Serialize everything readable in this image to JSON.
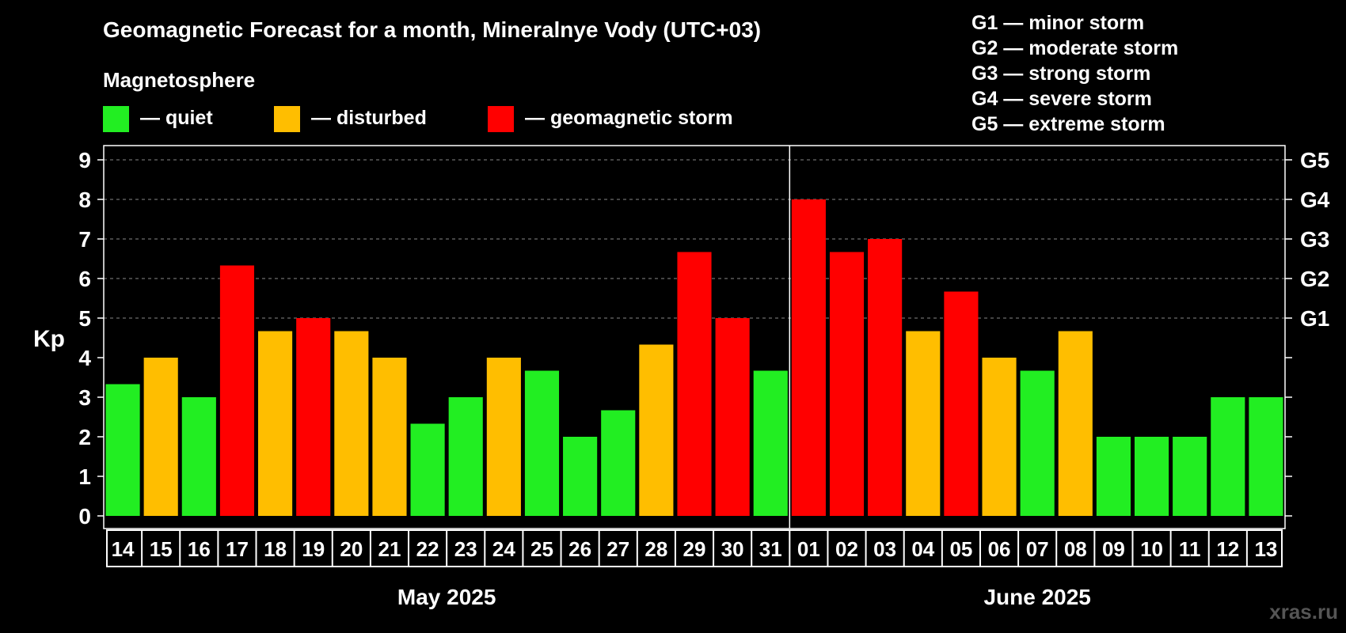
{
  "title": "Geomagnetic Forecast for a month, Mineralnye Vody (UTC+03)",
  "legend": {
    "heading": "Magnetosphere",
    "items": [
      {
        "label": "— quiet",
        "color": "#22ee22"
      },
      {
        "label": "— disturbed",
        "color": "#ffbe00"
      },
      {
        "label": "— geomagnetic storm",
        "color": "#ff0000"
      }
    ]
  },
  "storm_scale": [
    "G1 — minor storm",
    "G2 — moderate storm",
    "G3 — strong storm",
    "G4 — severe storm",
    "G5 — extreme storm"
  ],
  "watermark": "xras.ru",
  "chart_data": {
    "type": "bar",
    "ylabel": "Kp",
    "ylim": [
      0,
      9
    ],
    "yticks": [
      0,
      1,
      2,
      3,
      4,
      5,
      6,
      7,
      8,
      9
    ],
    "right_ticks": [
      {
        "value": 5,
        "label": "G1"
      },
      {
        "value": 6,
        "label": "G2"
      },
      {
        "value": 7,
        "label": "G3"
      },
      {
        "value": 8,
        "label": "G4"
      },
      {
        "value": 9,
        "label": "G5"
      }
    ],
    "grid": "dashed horizontal at 5-9",
    "months": [
      {
        "label": "May 2025",
        "first_index": 0,
        "last_index": 17
      },
      {
        "label": "June 2025",
        "first_index": 18,
        "last_index": 30
      }
    ],
    "categories": [
      "14",
      "15",
      "16",
      "17",
      "18",
      "19",
      "20",
      "21",
      "22",
      "23",
      "24",
      "25",
      "26",
      "27",
      "28",
      "29",
      "30",
      "31",
      "01",
      "02",
      "03",
      "04",
      "05",
      "06",
      "07",
      "08",
      "09",
      "10",
      "11",
      "12",
      "13"
    ],
    "values": [
      3.33,
      4,
      3,
      6.33,
      4.67,
      5,
      4.67,
      4,
      2.33,
      3,
      4,
      3.67,
      2,
      2.67,
      4.33,
      6.67,
      5,
      3.67,
      8,
      6.67,
      7,
      4.67,
      5.67,
      4,
      3.67,
      4.67,
      2,
      2,
      2,
      3,
      3
    ],
    "status": [
      "quiet",
      "disturbed",
      "quiet",
      "storm",
      "disturbed",
      "storm",
      "disturbed",
      "disturbed",
      "quiet",
      "quiet",
      "disturbed",
      "quiet",
      "quiet",
      "quiet",
      "disturbed",
      "storm",
      "storm",
      "quiet",
      "storm",
      "storm",
      "storm",
      "disturbed",
      "storm",
      "disturbed",
      "quiet",
      "disturbed",
      "quiet",
      "quiet",
      "quiet",
      "quiet",
      "quiet"
    ],
    "colors": {
      "quiet": "#22ee22",
      "disturbed": "#ffbe00",
      "storm": "#ff0000"
    }
  }
}
